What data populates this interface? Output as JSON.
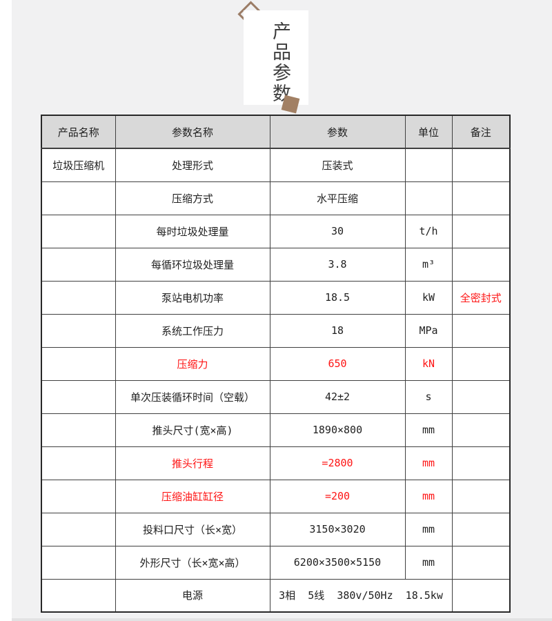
{
  "page": {
    "bg": "#ffffff",
    "panel_bg": "#f1f1f2"
  },
  "header_card": {
    "title": "产品参数",
    "diamond_color": "#9b7c66",
    "square_color": "#a28064"
  },
  "table": {
    "header_bg": "#d9d9d9",
    "red": "#fe1414",
    "columns": [
      "产品名称",
      "参数名称",
      "参数",
      "单位",
      "备注"
    ],
    "rows": [
      {
        "product": "垃圾压缩机",
        "name": "处理形式",
        "value": "压装式",
        "unit": "",
        "note": "",
        "red_cols": []
      },
      {
        "product": "",
        "name": "压缩方式",
        "value": "水平压缩",
        "unit": "",
        "note": "",
        "red_cols": []
      },
      {
        "product": "",
        "name": "每时垃圾处理量",
        "value": "30",
        "unit": "t/h",
        "note": "",
        "red_cols": []
      },
      {
        "product": "",
        "name": "每循环垃圾处理量",
        "value": "3.8",
        "unit": "m³",
        "note": "",
        "red_cols": []
      },
      {
        "product": "",
        "name": "泵站电机功率",
        "value": "18.5",
        "unit": "kW",
        "note": "全密封式",
        "red_cols": [
          "note"
        ]
      },
      {
        "product": "",
        "name": "系统工作压力",
        "value": "18",
        "unit": "MPa",
        "note": "",
        "red_cols": []
      },
      {
        "product": "",
        "name": "压缩力",
        "value": "650",
        "unit": "kN",
        "note": "",
        "red_cols": [
          "name",
          "value",
          "unit"
        ]
      },
      {
        "product": "",
        "name": "单次压装循环时间（空载）",
        "value": "42±2",
        "unit": "s",
        "note": "",
        "red_cols": []
      },
      {
        "product": "",
        "name": "推头尺寸(宽×高)",
        "value": "1890×800",
        "unit": "mm",
        "note": "",
        "red_cols": []
      },
      {
        "product": "",
        "name": "推头行程",
        "value": "=2800",
        "unit": "mm",
        "note": "",
        "red_cols": [
          "name",
          "value",
          "unit"
        ]
      },
      {
        "product": "",
        "name": "压缩油缸缸径",
        "value": "=200",
        "unit": "mm",
        "note": "",
        "red_cols": [
          "name",
          "value",
          "unit"
        ]
      },
      {
        "product": "",
        "name": "投料口尺寸（长×宽）",
        "value": "3150×3020",
        "unit": "mm",
        "note": "",
        "red_cols": []
      },
      {
        "product": "",
        "name": "外形尺寸（长×宽×高）",
        "value": "6200×3500×5150",
        "unit": "mm",
        "note": "",
        "red_cols": []
      },
      {
        "product": "",
        "name": "电源",
        "value": "3相  5线  380v/50Hz  18.5kw",
        "unit": "",
        "note": "",
        "red_cols": [],
        "span_unit": true
      }
    ]
  }
}
